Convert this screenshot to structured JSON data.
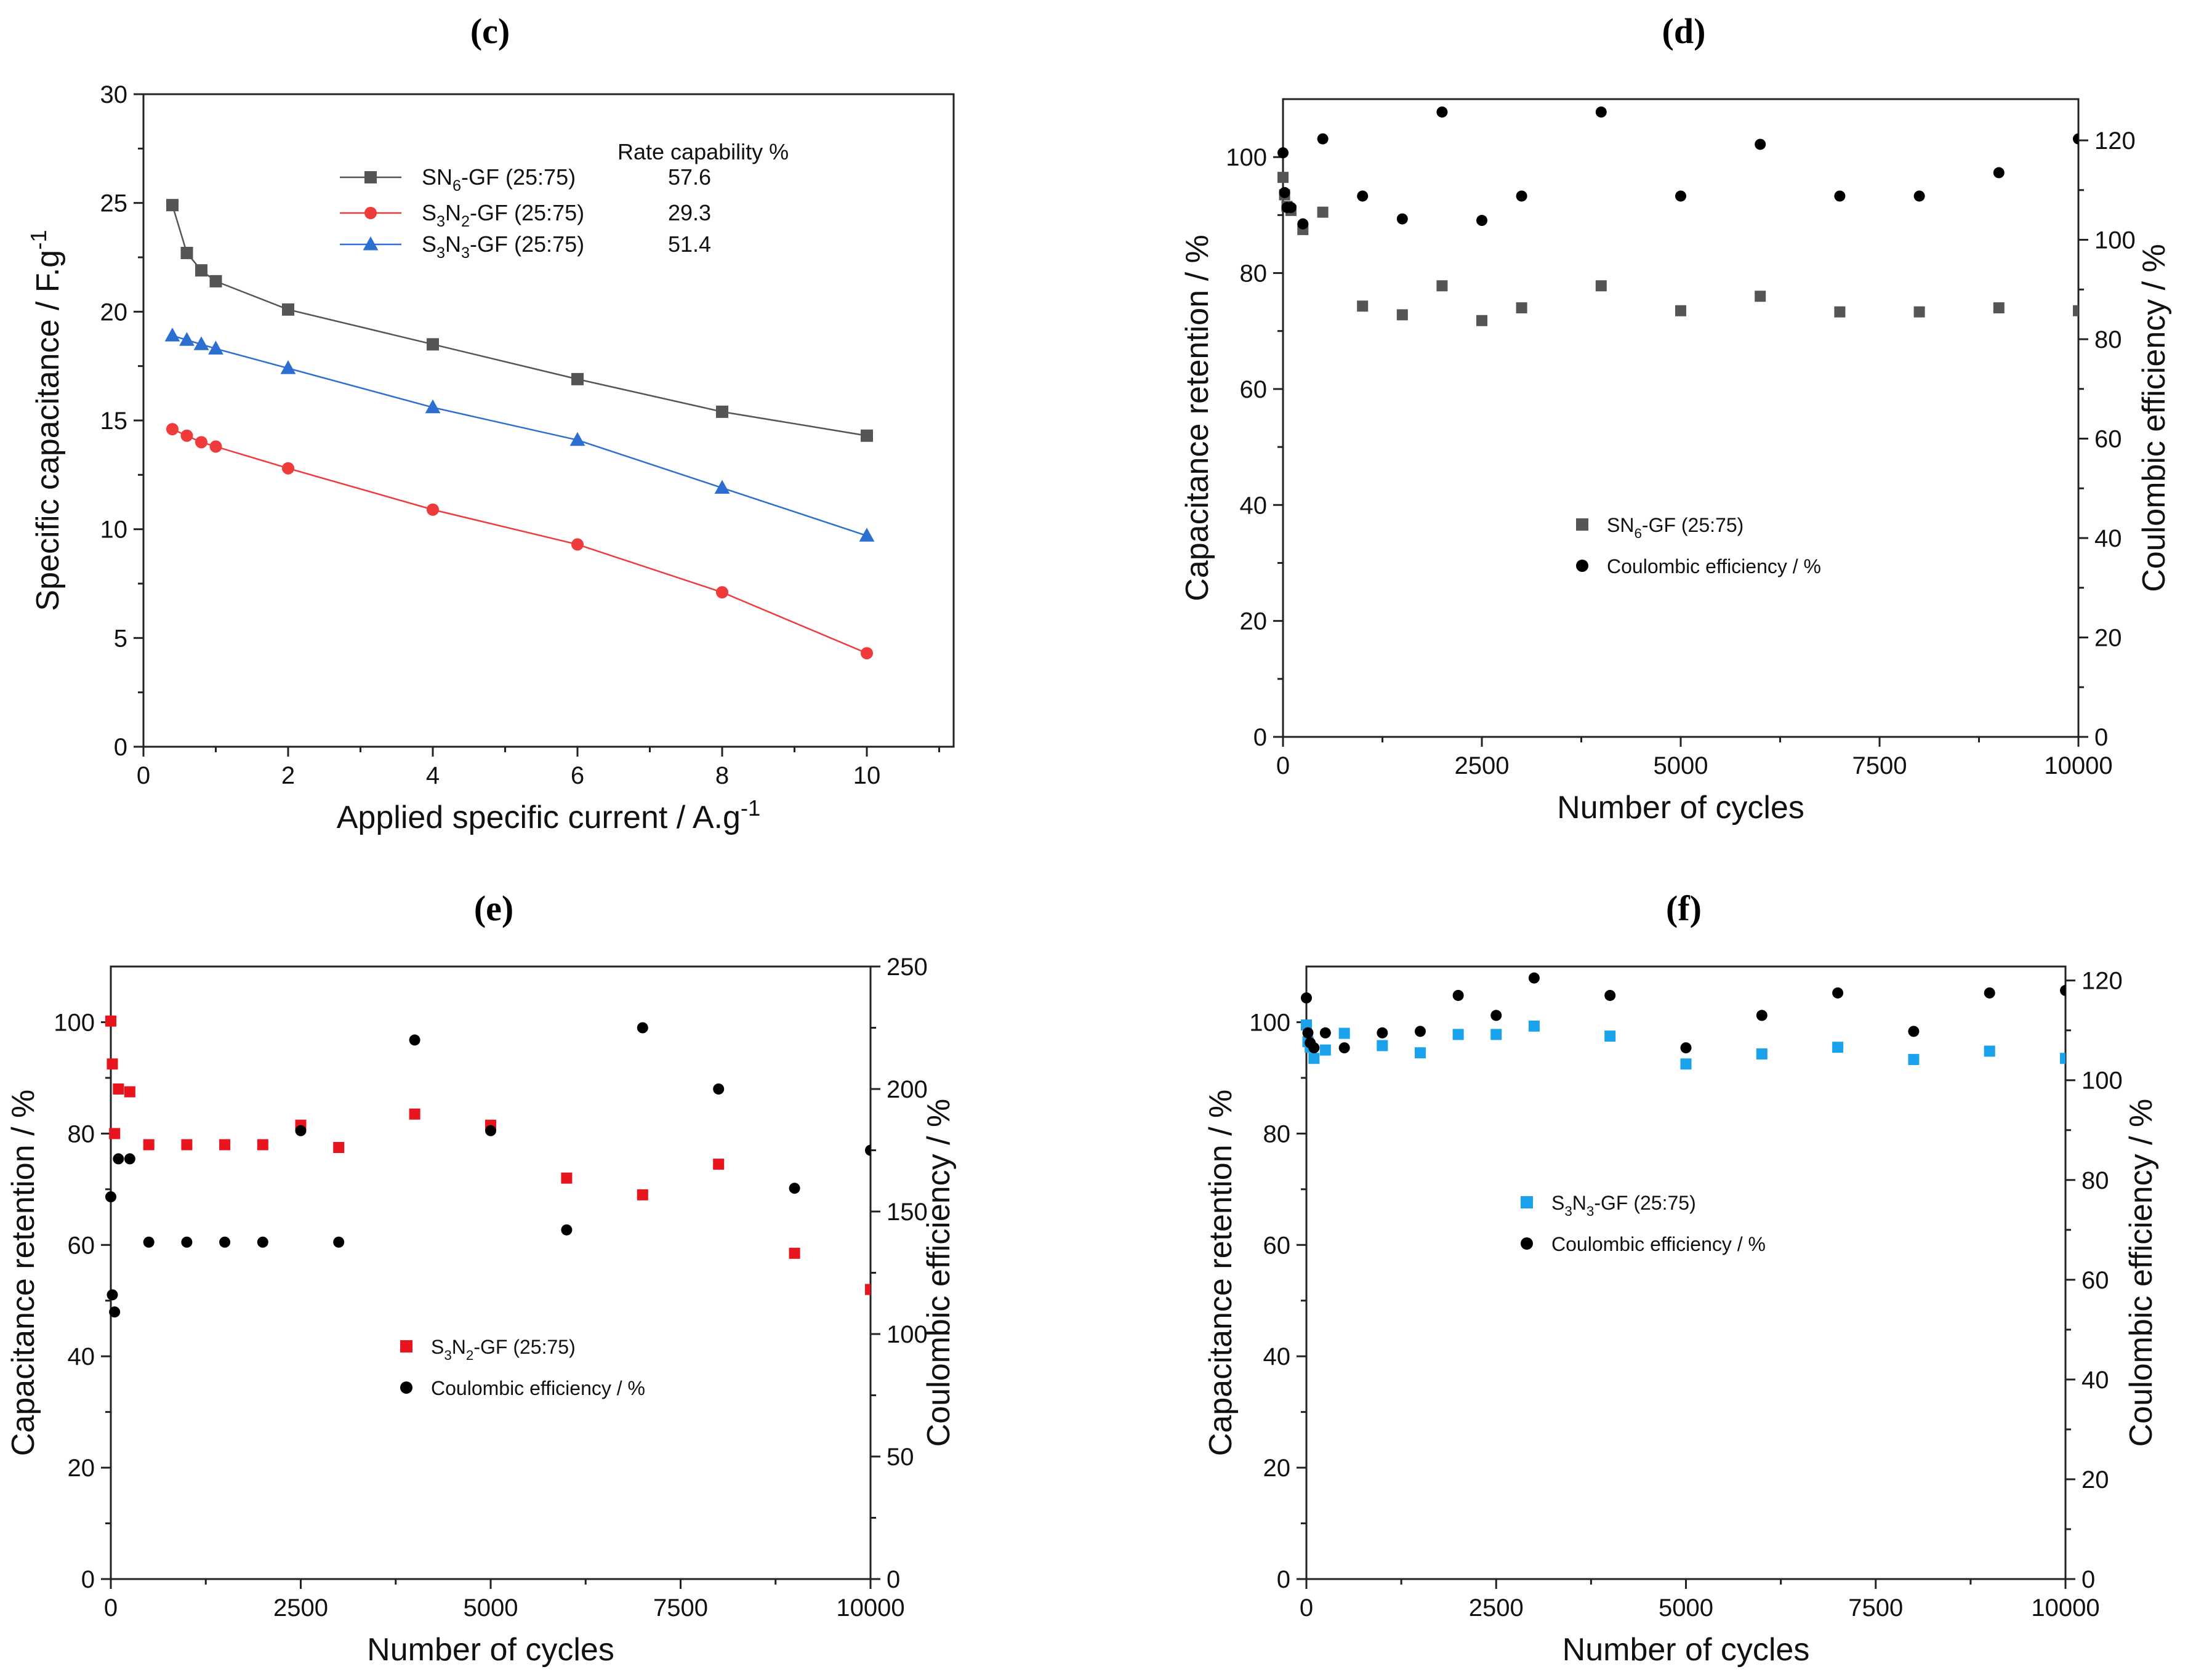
{
  "chart_data": [
    {
      "id": "c",
      "panel_label": "(c)",
      "type": "line",
      "xlabel": "Applied specific current / A.g",
      "xlabel_sup": "-1",
      "ylabel": "Specific capacitance / F.g",
      "ylabel_sup": "-1",
      "xlim": [
        0,
        11.2
      ],
      "ylim": [
        0,
        30
      ],
      "xticks": [
        0,
        2,
        4,
        6,
        8,
        10
      ],
      "yticks": [
        0,
        5,
        10,
        15,
        20,
        25,
        30
      ],
      "legend_header": "Rate capability %",
      "series": [
        {
          "name_parts": [
            [
              "SN",
              ""
            ],
            [
              "6",
              "sub"
            ],
            [
              "-GF (25:75)",
              ""
            ]
          ],
          "name": "SN6-GF (25:75)",
          "rate": "57.6",
          "color": "#555555",
          "marker": "square",
          "x": [
            0.4,
            0.6,
            0.8,
            1,
            2,
            4,
            6,
            8,
            10
          ],
          "y": [
            24.9,
            22.7,
            21.9,
            21.4,
            20.1,
            18.5,
            16.9,
            15.4,
            14.3
          ]
        },
        {
          "name_parts": [
            [
              "S",
              ""
            ],
            [
              "3",
              "sub"
            ],
            [
              "N",
              ""
            ],
            [
              "2",
              "sub"
            ],
            [
              "-GF (25:75)",
              ""
            ]
          ],
          "name": "S3N2-GF (25:75)",
          "rate": "29.3",
          "color": "#ef3b3b",
          "marker": "circle",
          "x": [
            0.4,
            0.6,
            0.8,
            1,
            2,
            4,
            6,
            8,
            10
          ],
          "y": [
            14.6,
            14.3,
            14.0,
            13.8,
            12.8,
            10.9,
            9.3,
            7.1,
            4.3
          ]
        },
        {
          "name_parts": [
            [
              "S",
              ""
            ],
            [
              "3",
              "sub"
            ],
            [
              "N",
              ""
            ],
            [
              "3",
              "sub"
            ],
            [
              "-GF (25:75)",
              ""
            ]
          ],
          "name": "S3N3-GF (25:75)",
          "rate": "51.4",
          "color": "#2c6fd1",
          "marker": "triangle",
          "x": [
            0.4,
            0.6,
            0.8,
            1,
            2,
            4,
            6,
            8,
            10
          ],
          "y": [
            18.9,
            18.7,
            18.5,
            18.3,
            17.4,
            15.6,
            14.1,
            11.9,
            9.7
          ]
        }
      ]
    },
    {
      "id": "d",
      "panel_label": "(d)",
      "type": "scatter",
      "xlabel": "Number of cycles",
      "ylabel": "Capacitance retention / %",
      "y2label": "Coulombic efficiency / %",
      "xlim": [
        0,
        10000
      ],
      "ylim": [
        0,
        110
      ],
      "y2lim": [
        0,
        128.3
      ],
      "xticks": [
        0,
        2500,
        5000,
        7500,
        10000
      ],
      "yticks": [
        0,
        20,
        40,
        60,
        80,
        100
      ],
      "y2ticks": [
        0,
        20,
        40,
        60,
        80,
        100,
        120
      ],
      "series": [
        {
          "name_parts": [
            [
              "SN",
              ""
            ],
            [
              "6",
              "sub"
            ],
            [
              "-GF (25:75)",
              ""
            ]
          ],
          "name": "SN6-GF (25:75)",
          "axis": "left",
          "color": "#555555",
          "marker": "square",
          "x": [
            0,
            20,
            50,
            100,
            250,
            500,
            1000,
            1500,
            2000,
            2500,
            3000,
            4000,
            5000,
            6000,
            7000,
            8000,
            9000,
            10000
          ],
          "y": [
            96.5,
            93.5,
            91.5,
            90.8,
            87.5,
            90.5,
            74.3,
            72.8,
            77.8,
            71.8,
            74.0,
            77.8,
            73.5,
            76.0,
            73.3,
            73.3,
            74.0,
            73.5
          ]
        },
        {
          "name": "Coulombic efficiency / %",
          "axis": "right",
          "color": "#000000",
          "marker": "circle",
          "x": [
            0,
            20,
            50,
            100,
            250,
            500,
            1000,
            1500,
            2000,
            2500,
            3000,
            4000,
            5000,
            6000,
            7000,
            8000,
            9000,
            10000
          ],
          "y": [
            117.5,
            109.5,
            106.5,
            106.5,
            103.2,
            120.3,
            108.8,
            104.2,
            125.7,
            103.9,
            108.8,
            125.7,
            108.8,
            119.2,
            108.8,
            108.8,
            113.5,
            120.3
          ]
        }
      ]
    },
    {
      "id": "e",
      "panel_label": "(e)",
      "type": "scatter",
      "xlabel": "Number of cycles",
      "ylabel": "Capacitance retention / %",
      "y2label": "Coulombic efficiency / %",
      "xlim": [
        0,
        10000
      ],
      "ylim": [
        0,
        110
      ],
      "y2lim": [
        0,
        250
      ],
      "xticks": [
        0,
        2500,
        5000,
        7500,
        10000
      ],
      "yticks": [
        0,
        20,
        40,
        60,
        80,
        100
      ],
      "y2ticks": [
        0,
        50,
        100,
        150,
        200,
        250
      ],
      "series": [
        {
          "name_parts": [
            [
              "S",
              ""
            ],
            [
              "3",
              "sub"
            ],
            [
              "N",
              ""
            ],
            [
              "2",
              "sub"
            ],
            [
              "-GF (25:75)",
              ""
            ]
          ],
          "name": "S3N2-GF (25:75)",
          "axis": "left",
          "color": "#e8141e",
          "marker": "square",
          "x": [
            0,
            20,
            50,
            100,
            250,
            500,
            1000,
            1500,
            2000,
            2500,
            3000,
            4000,
            5000,
            6000,
            7000,
            8000,
            9000,
            10000
          ],
          "y": [
            100.2,
            92.5,
            80.0,
            88.0,
            87.5,
            78.0,
            78.0,
            78.0,
            78.0,
            81.5,
            77.5,
            83.5,
            81.5,
            72.0,
            69.0,
            74.5,
            58.5,
            52.0
          ],
          "edge_clipped": [
            false,
            false,
            false,
            false,
            false,
            false,
            false,
            false,
            false,
            false,
            false,
            false,
            false,
            false,
            false,
            false,
            false,
            true
          ]
        },
        {
          "name": "Coulombic efficiency / %",
          "axis": "right",
          "color": "#000000",
          "marker": "circle",
          "x": [
            0,
            20,
            50,
            100,
            250,
            500,
            1000,
            1500,
            2000,
            2500,
            3000,
            4000,
            5000,
            6000,
            7000,
            8000,
            9000,
            10000
          ],
          "y": [
            156,
            116,
            109,
            171.5,
            171.5,
            137.5,
            137.5,
            137.5,
            137.5,
            183,
            137.5,
            220,
            183,
            142.5,
            225,
            200,
            159.5,
            175
          ],
          "edge_clipped": [
            false,
            false,
            false,
            false,
            false,
            false,
            false,
            false,
            false,
            false,
            false,
            false,
            false,
            false,
            false,
            false,
            false,
            true
          ]
        }
      ]
    },
    {
      "id": "f",
      "panel_label": "(f)",
      "type": "scatter",
      "xlabel": "Number of cycles",
      "ylabel": "Capacitance retention / %",
      "y2label": "Coulombic efficiency / %",
      "xlim": [
        0,
        10000
      ],
      "ylim": [
        0,
        110
      ],
      "y2lim": [
        0,
        122.8
      ],
      "xticks": [
        0,
        2500,
        5000,
        7500,
        10000
      ],
      "yticks": [
        0,
        20,
        40,
        60,
        80,
        100
      ],
      "y2ticks": [
        0,
        20,
        40,
        60,
        80,
        100,
        120
      ],
      "series": [
        {
          "name_parts": [
            [
              "S",
              ""
            ],
            [
              "3",
              "sub"
            ],
            [
              "N",
              ""
            ],
            [
              "3",
              "sub"
            ],
            [
              "-GF (25:75)",
              ""
            ]
          ],
          "name": "S3N3-GF (25:75)",
          "axis": "left",
          "color": "#1aa3ec",
          "marker": "square",
          "x": [
            0,
            20,
            50,
            100,
            250,
            500,
            1000,
            1500,
            2000,
            2500,
            3000,
            4000,
            5000,
            6000,
            7000,
            8000,
            9000,
            10000
          ],
          "y": [
            99.5,
            96.5,
            95.5,
            93.5,
            95.0,
            98.0,
            95.8,
            94.5,
            97.8,
            97.8,
            99.3,
            97.5,
            92.5,
            94.3,
            95.5,
            93.3,
            94.8,
            93.5
          ],
          "edge_clipped": [
            false,
            false,
            false,
            false,
            false,
            false,
            false,
            false,
            false,
            false,
            false,
            false,
            false,
            false,
            false,
            false,
            false,
            true
          ]
        },
        {
          "name": "Coulombic efficiency / %",
          "axis": "right",
          "color": "#000000",
          "marker": "circle",
          "x": [
            0,
            20,
            50,
            100,
            250,
            500,
            1000,
            1500,
            2000,
            2500,
            3000,
            4000,
            5000,
            6000,
            7000,
            8000,
            9000,
            10000
          ],
          "y": [
            116.5,
            109.5,
            107.5,
            106.5,
            109.5,
            106.5,
            109.5,
            109.8,
            117.0,
            113.0,
            120.5,
            117.0,
            106.5,
            113.0,
            117.5,
            109.8,
            117.5,
            118.0
          ],
          "edge_clipped": [
            false,
            false,
            false,
            false,
            false,
            false,
            false,
            false,
            false,
            false,
            false,
            false,
            false,
            false,
            false,
            false,
            false,
            true
          ]
        }
      ]
    }
  ]
}
